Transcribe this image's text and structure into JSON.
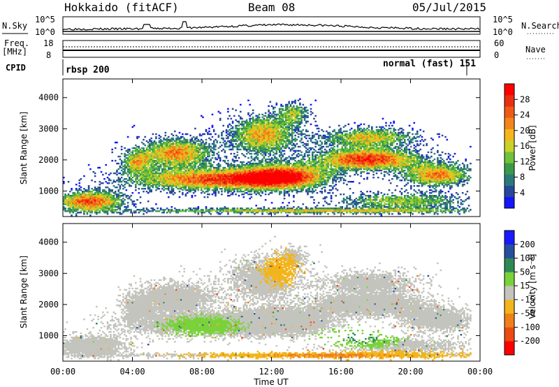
{
  "header": {
    "station": "Hokkaido (fitACF)",
    "beam": "Beam 08",
    "date": "05/Jul/2015"
  },
  "top_panels": {
    "nsky_label": "N.Sky",
    "nsky_ticks": [
      "10^5",
      "10^0"
    ],
    "nsearch_label": "N.Search",
    "nsearch_ticks": [
      "10^5",
      "10^0"
    ],
    "freq_label_1": "Freq.",
    "freq_label_2": "[MHz]",
    "freq_ticks": [
      "18",
      "8"
    ],
    "nave_label": "Nave",
    "nave_ticks": [
      "60",
      "0"
    ],
    "cpid_label": "CPID",
    "cpid_left": "rbsp 200",
    "cpid_right": "normal (fast) 151"
  },
  "chart_data": [
    {
      "type": "heatmap",
      "name": "power",
      "ylabel": "Slant Range [km]",
      "xlabel": "Time UT",
      "x_ticks": [
        "00:00",
        "04:00",
        "08:00",
        "12:00",
        "16:00",
        "20:00",
        "00:00"
      ],
      "x_range_hours": [
        0,
        24
      ],
      "y_ticks": [
        1000,
        2000,
        3000,
        4000
      ],
      "ylim": [
        180,
        4600
      ],
      "colorbar": {
        "label": "Power [dB]",
        "ticks": [
          4,
          8,
          12,
          16,
          20,
          24,
          28
        ],
        "colors": [
          "#1515ff",
          "#28489a",
          "#2a7a7a",
          "#3a9a4a",
          "#6fc23a",
          "#c9d22a",
          "#f7b51c",
          "#f2861b",
          "#ef5b17",
          "#e83010",
          "#ff0000"
        ]
      }
    },
    {
      "type": "heatmap",
      "name": "velocity",
      "ylabel": "Slant Range [km]",
      "xlabel": "Time UT",
      "x_ticks": [
        "00:00",
        "04:00",
        "08:00",
        "12:00",
        "16:00",
        "20:00",
        "00:00"
      ],
      "x_range_hours": [
        0,
        24
      ],
      "y_ticks": [
        1000,
        2000,
        3000,
        4000
      ],
      "ylim": [
        180,
        4600
      ],
      "colorbar": {
        "label": "Velocity [m s^-1]",
        "ticks": [
          200,
          100,
          50,
          15,
          -15,
          -50,
          -100,
          -200
        ],
        "colors": [
          "#1a1aff",
          "#264f9e",
          "#2d8a55",
          "#7ad23a",
          "#c4c4be",
          "#f2b51c",
          "#f0801a",
          "#ec4a14",
          "#ff0000"
        ]
      }
    }
  ]
}
